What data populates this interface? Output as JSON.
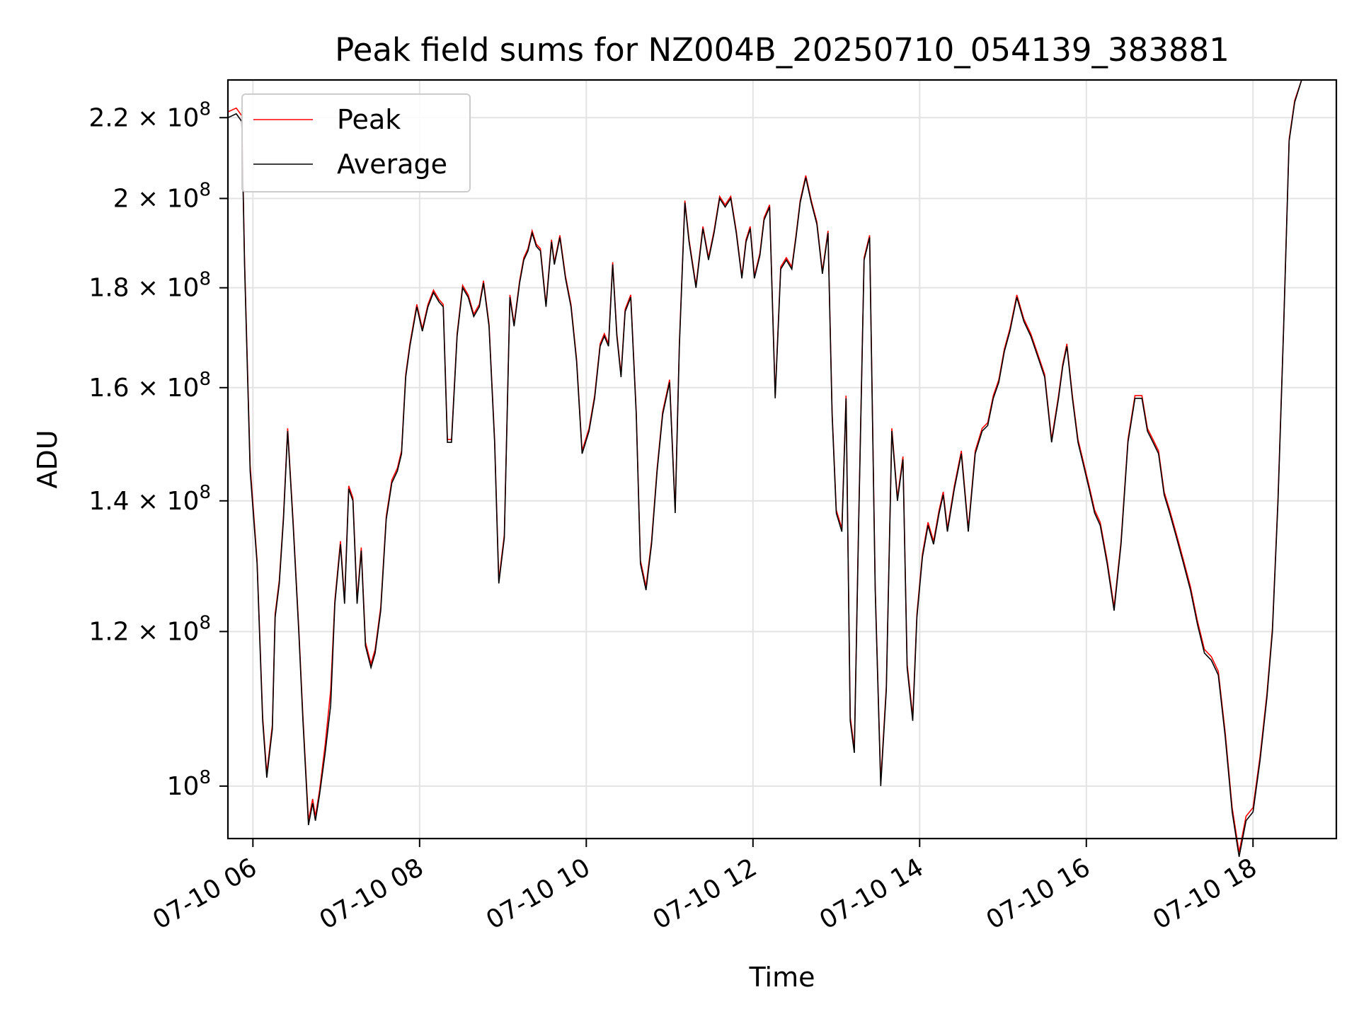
{
  "chart_data": {
    "type": "line",
    "title": "Peak field sums for NZ004B_20250710_054139_383881",
    "xlabel": "Time",
    "ylabel": "ADU",
    "y_scale": "log",
    "xlim": [
      "2025-07-10 05:42",
      "2025-07-10 19:00"
    ],
    "ylim": [
      94000000,
      230000000
    ],
    "grid": true,
    "legend_position": "upper left",
    "x_ticks": [
      {
        "value": "2025-07-10 06:00",
        "label": "07-10 06"
      },
      {
        "value": "2025-07-10 08:00",
        "label": "07-10 08"
      },
      {
        "value": "2025-07-10 10:00",
        "label": "07-10 10"
      },
      {
        "value": "2025-07-10 12:00",
        "label": "07-10 12"
      },
      {
        "value": "2025-07-10 14:00",
        "label": "07-10 14"
      },
      {
        "value": "2025-07-10 16:00",
        "label": "07-10 16"
      },
      {
        "value": "2025-07-10 18:00",
        "label": "07-10 18"
      }
    ],
    "y_ticks": [
      {
        "value": 100000000,
        "mantissa": "",
        "exp": "8"
      },
      {
        "value": 120000000,
        "mantissa": "1.2",
        "exp": "8"
      },
      {
        "value": 140000000,
        "mantissa": "1.4",
        "exp": "8"
      },
      {
        "value": 160000000,
        "mantissa": "1.6",
        "exp": "8"
      },
      {
        "value": 180000000,
        "mantissa": "1.8",
        "exp": "8"
      },
      {
        "value": 200000000,
        "mantissa": "2",
        "exp": "8"
      },
      {
        "value": 220000000,
        "mantissa": "2.2",
        "exp": "8"
      }
    ],
    "series": [
      {
        "name": "Peak",
        "color": "#ff0000"
      },
      {
        "name": "Average",
        "color": "#000000"
      }
    ],
    "x": [
      "2025-07-10 05:42",
      "2025-07-10 05:48",
      "2025-07-10 05:52",
      "2025-07-10 05:54",
      "2025-07-10 05:58",
      "2025-07-10 06:03",
      "2025-07-10 06:07",
      "2025-07-10 06:10",
      "2025-07-10 06:14",
      "2025-07-10 06:16",
      "2025-07-10 06:19",
      "2025-07-10 06:22",
      "2025-07-10 06:25",
      "2025-07-10 06:29",
      "2025-07-10 06:33",
      "2025-07-10 06:36",
      "2025-07-10 06:40",
      "2025-07-10 06:43",
      "2025-07-10 06:45",
      "2025-07-10 06:48",
      "2025-07-10 06:52",
      "2025-07-10 06:56",
      "2025-07-10 06:59",
      "2025-07-10 07:03",
      "2025-07-10 07:06",
      "2025-07-10 07:09",
      "2025-07-10 07:12",
      "2025-07-10 07:15",
      "2025-07-10 07:18",
      "2025-07-10 07:21",
      "2025-07-10 07:25",
      "2025-07-10 07:28",
      "2025-07-10 07:32",
      "2025-07-10 07:36",
      "2025-07-10 07:40",
      "2025-07-10 07:44",
      "2025-07-10 07:47",
      "2025-07-10 07:50",
      "2025-07-10 07:53",
      "2025-07-10 07:58",
      "2025-07-10 08:02",
      "2025-07-10 08:06",
      "2025-07-10 08:10",
      "2025-07-10 08:14",
      "2025-07-10 08:17",
      "2025-07-10 08:20",
      "2025-07-10 08:23",
      "2025-07-10 08:27",
      "2025-07-10 08:31",
      "2025-07-10 08:35",
      "2025-07-10 08:39",
      "2025-07-10 08:43",
      "2025-07-10 08:46",
      "2025-07-10 08:50",
      "2025-07-10 08:54",
      "2025-07-10 08:57",
      "2025-07-10 09:01",
      "2025-07-10 09:05",
      "2025-07-10 09:08",
      "2025-07-10 09:12",
      "2025-07-10 09:15",
      "2025-07-10 09:18",
      "2025-07-10 09:21",
      "2025-07-10 09:24",
      "2025-07-10 09:27",
      "2025-07-10 09:31",
      "2025-07-10 09:35",
      "2025-07-10 09:37",
      "2025-07-10 09:41",
      "2025-07-10 09:45",
      "2025-07-10 09:49",
      "2025-07-10 09:53",
      "2025-07-10 09:57",
      "2025-07-10 10:02",
      "2025-07-10 10:06",
      "2025-07-10 10:10",
      "2025-07-10 10:13",
      "2025-07-10 10:16",
      "2025-07-10 10:19",
      "2025-07-10 10:22",
      "2025-07-10 10:25",
      "2025-07-10 10:28",
      "2025-07-10 10:32",
      "2025-07-10 10:36",
      "2025-07-10 10:39",
      "2025-07-10 10:43",
      "2025-07-10 10:47",
      "2025-07-10 10:51",
      "2025-07-10 10:55",
      "2025-07-10 11:00",
      "2025-07-10 11:04",
      "2025-07-10 11:07",
      "2025-07-10 11:11",
      "2025-07-10 11:14",
      "2025-07-10 11:19",
      "2025-07-10 11:24",
      "2025-07-10 11:28",
      "2025-07-10 11:32",
      "2025-07-10 11:36",
      "2025-07-10 11:40",
      "2025-07-10 11:44",
      "2025-07-10 11:48",
      "2025-07-10 11:52",
      "2025-07-10 11:55",
      "2025-07-10 11:58",
      "2025-07-10 12:01",
      "2025-07-10 12:05",
      "2025-07-10 12:08",
      "2025-07-10 12:12",
      "2025-07-10 12:16",
      "2025-07-10 12:20",
      "2025-07-10 12:24",
      "2025-07-10 12:28",
      "2025-07-10 12:31",
      "2025-07-10 12:34",
      "2025-07-10 12:38",
      "2025-07-10 12:42",
      "2025-07-10 12:46",
      "2025-07-10 12:50",
      "2025-07-10 12:54",
      "2025-07-10 12:57",
      "2025-07-10 13:00",
      "2025-07-10 13:04",
      "2025-07-10 13:07",
      "2025-07-10 13:10",
      "2025-07-10 13:13",
      "2025-07-10 13:16",
      "2025-07-10 13:20",
      "2025-07-10 13:24",
      "2025-07-10 13:28",
      "2025-07-10 13:32",
      "2025-07-10 13:36",
      "2025-07-10 13:40",
      "2025-07-10 13:44",
      "2025-07-10 13:48",
      "2025-07-10 13:51",
      "2025-07-10 13:55",
      "2025-07-10 13:58",
      "2025-07-10 14:02",
      "2025-07-10 14:06",
      "2025-07-10 14:10",
      "2025-07-10 14:14",
      "2025-07-10 14:17",
      "2025-07-10 14:20",
      "2025-07-10 14:25",
      "2025-07-10 14:30",
      "2025-07-10 14:35",
      "2025-07-10 14:40",
      "2025-07-10 14:45",
      "2025-07-10 14:49",
      "2025-07-10 14:53",
      "2025-07-10 14:57",
      "2025-07-10 15:01",
      "2025-07-10 15:05",
      "2025-07-10 15:10",
      "2025-07-10 15:15",
      "2025-07-10 15:20",
      "2025-07-10 15:25",
      "2025-07-10 15:30",
      "2025-07-10 15:35",
      "2025-07-10 15:40",
      "2025-07-10 15:43",
      "2025-07-10 15:46",
      "2025-07-10 15:50",
      "2025-07-10 15:54",
      "2025-07-10 15:58",
      "2025-07-10 16:02",
      "2025-07-10 16:06",
      "2025-07-10 16:10",
      "2025-07-10 16:15",
      "2025-07-10 16:20",
      "2025-07-10 16:25",
      "2025-07-10 16:30",
      "2025-07-10 16:35",
      "2025-07-10 16:40",
      "2025-07-10 16:44",
      "2025-07-10 16:48",
      "2025-07-10 16:52",
      "2025-07-10 16:56",
      "2025-07-10 17:00",
      "2025-07-10 17:05",
      "2025-07-10 17:10",
      "2025-07-10 17:15",
      "2025-07-10 17:20",
      "2025-07-10 17:25",
      "2025-07-10 17:30",
      "2025-07-10 17:35",
      "2025-07-10 17:40",
      "2025-07-10 17:45",
      "2025-07-10 17:50",
      "2025-07-10 17:55",
      "2025-07-10 18:00",
      "2025-07-10 18:05",
      "2025-07-10 18:10",
      "2025-07-10 18:14",
      "2025-07-10 18:18",
      "2025-07-10 18:22",
      "2025-07-10 18:26",
      "2025-07-10 18:30",
      "2025-07-10 18:35",
      "2025-07-10 18:40",
      "2025-07-10 18:44",
      "2025-07-10 18:48",
      "2025-07-10 18:52",
      "2025-07-10 18:55",
      "2025-07-10 18:58",
      "2025-07-10 19:00"
    ],
    "average": [
      220000000,
      221000000,
      219000000,
      185000000,
      145000000,
      130000000,
      108000000,
      101000000,
      107000000,
      122000000,
      127000000,
      137000000,
      152000000,
      136000000,
      120000000,
      108000000,
      95500000,
      98000000,
      96000000,
      99000000,
      104000000,
      110000000,
      124000000,
      133000000,
      124000000,
      142000000,
      140000000,
      124000000,
      132000000,
      118000000,
      115000000,
      117000000,
      123000000,
      137000000,
      143000000,
      145000000,
      148000000,
      162000000,
      168000000,
      176000000,
      171000000,
      176000000,
      179000000,
      177000000,
      176000000,
      150000000,
      150000000,
      170000000,
      180000000,
      178000000,
      174000000,
      176000000,
      181000000,
      172000000,
      150000000,
      127000000,
      134000000,
      178000000,
      172000000,
      181000000,
      186000000,
      188000000,
      192000000,
      189000000,
      188000000,
      176000000,
      190000000,
      185000000,
      191000000,
      182000000,
      176000000,
      165000000,
      148000000,
      152000000,
      158000000,
      168000000,
      170000000,
      168000000,
      185000000,
      170000000,
      162000000,
      175000000,
      178000000,
      155000000,
      130000000,
      126000000,
      133000000,
      145000000,
      155000000,
      161000000,
      138000000,
      168000000,
      199000000,
      190000000,
      180000000,
      193000000,
      186000000,
      192000000,
      200000000,
      198000000,
      200000000,
      192000000,
      182000000,
      190000000,
      193000000,
      182000000,
      187000000,
      195000000,
      198000000,
      158000000,
      184000000,
      186000000,
      184000000,
      191000000,
      199000000,
      205000000,
      199000000,
      194000000,
      183000000,
      192000000,
      155000000,
      138000000,
      135000000,
      158000000,
      108000000,
      104000000,
      135000000,
      186000000,
      191000000,
      126000000,
      100000000,
      112000000,
      152000000,
      140000000,
      147000000,
      115000000,
      108000000,
      122000000,
      131000000,
      136000000,
      133000000,
      138000000,
      141000000,
      135000000,
      142000000,
      148000000,
      135000000,
      148000000,
      152000000,
      153000000,
      158000000,
      161000000,
      167000000,
      171000000,
      178000000,
      173000000,
      170000000,
      166000000,
      162000000,
      150000000,
      158000000,
      164000000,
      168000000,
      158000000,
      150000000,
      146000000,
      142000000,
      138000000,
      136000000,
      130000000,
      123000000,
      133000000,
      150000000,
      158000000,
      158000000,
      152000000,
      150000000,
      148000000,
      141000000,
      138000000,
      134000000,
      130000000,
      126000000,
      121000000,
      117000000,
      116000000,
      114000000,
      106000000,
      97000000,
      92000000,
      96000000,
      97000000,
      103000000,
      111000000,
      120000000,
      140000000,
      171000000,
      214000000,
      224000000,
      230000000,
      230000000
    ],
    "peak": [
      221500000,
      222500000,
      220500000,
      186000000,
      146000000,
      130500000,
      108500000,
      101500000,
      107500000,
      122500000,
      127500000,
      137500000,
      152500000,
      136500000,
      120500000,
      108500000,
      96000000,
      98500000,
      96500000,
      99500000,
      105000000,
      112000000,
      124500000,
      133500000,
      124500000,
      142500000,
      140500000,
      124500000,
      132500000,
      118500000,
      115500000,
      117500000,
      123500000,
      137500000,
      143500000,
      145500000,
      148500000,
      162500000,
      168500000,
      176500000,
      171500000,
      176500000,
      179500000,
      177500000,
      176500000,
      150500000,
      150500000,
      170500000,
      180500000,
      178500000,
      174500000,
      176500000,
      181500000,
      172500000,
      150500000,
      127500000,
      134500000,
      178500000,
      172500000,
      181500000,
      186500000,
      188500000,
      192500000,
      189500000,
      188500000,
      176500000,
      190500000,
      185500000,
      191500000,
      182500000,
      176500000,
      165500000,
      148500000,
      152500000,
      158500000,
      168500000,
      170500000,
      168500000,
      185500000,
      170500000,
      162500000,
      175500000,
      178500000,
      155500000,
      130500000,
      126500000,
      133500000,
      145500000,
      155500000,
      161500000,
      138500000,
      168500000,
      199500000,
      190500000,
      180500000,
      193500000,
      186500000,
      192500000,
      200500000,
      198500000,
      200500000,
      192500000,
      182500000,
      190500000,
      193500000,
      182500000,
      187500000,
      195500000,
      198500000,
      158500000,
      184500000,
      186500000,
      184500000,
      191500000,
      199500000,
      205500000,
      199500000,
      194500000,
      183500000,
      192500000,
      155500000,
      138500000,
      135500000,
      158500000,
      108500000,
      104500000,
      135500000,
      186500000,
      191500000,
      126500000,
      100500000,
      112500000,
      152500000,
      140500000,
      147500000,
      115500000,
      108500000,
      122500000,
      131500000,
      136500000,
      133500000,
      138500000,
      141500000,
      135500000,
      142500000,
      148500000,
      135500000,
      148500000,
      152500000,
      153500000,
      158500000,
      161500000,
      167500000,
      171500000,
      178500000,
      173500000,
      170500000,
      166500000,
      162500000,
      150500000,
      158500000,
      164500000,
      168500000,
      158500000,
      150500000,
      146500000,
      142500000,
      138500000,
      136500000,
      130500000,
      123500000,
      133500000,
      150500000,
      158500000,
      158500000,
      152500000,
      150500000,
      148500000,
      141500000,
      138500000,
      134500000,
      130500000,
      126500000,
      121500000,
      117500000,
      116500000,
      114500000,
      106500000,
      97500000,
      92500000,
      96500000,
      97500000,
      103500000,
      111500000,
      120500000,
      140500000,
      171500000,
      214500000,
      224500000,
      230000000,
      230000000
    ]
  }
}
